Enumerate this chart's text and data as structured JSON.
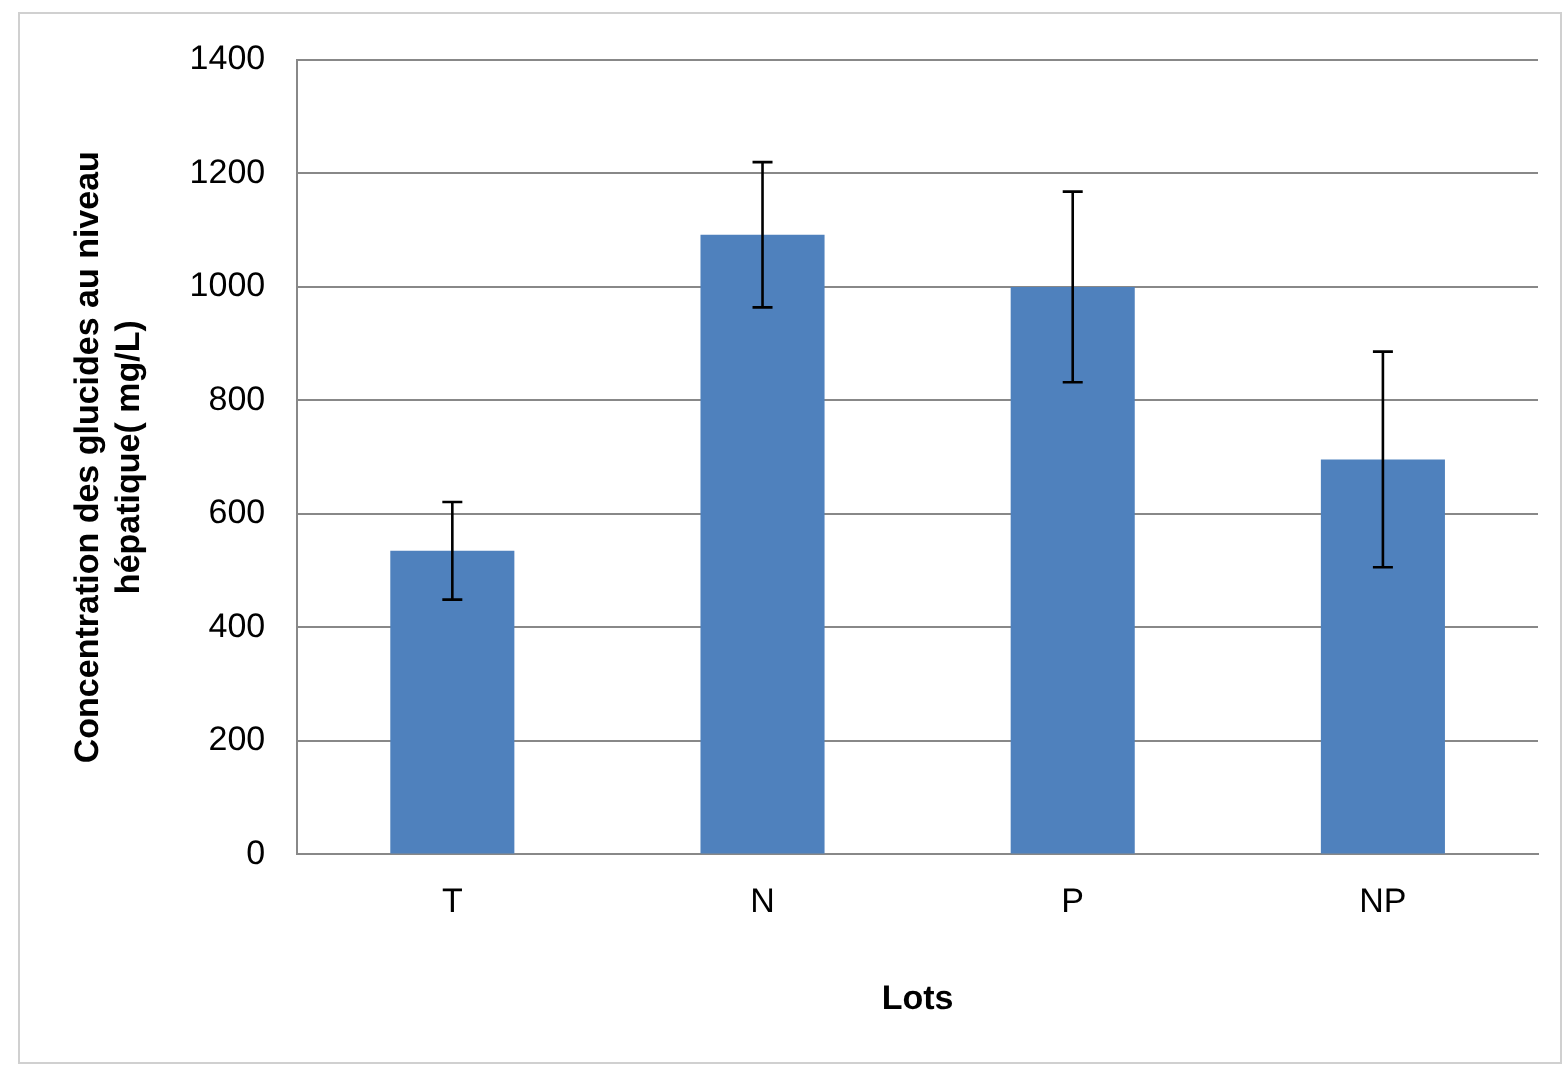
{
  "chart_data": {
    "type": "bar",
    "xlabel": "Lots",
    "ylabel": "Concentration des glucides au niveau hépatique( mg/L)",
    "categories": [
      "T",
      "N",
      "P",
      "NP"
    ],
    "values": [
      535,
      1092,
      1000,
      696
    ],
    "errors": [
      86,
      128,
      168,
      190
    ],
    "color": "#4f81bd",
    "ylim": [
      0,
      1400
    ],
    "yticks": [
      0,
      200,
      400,
      600,
      800,
      1000,
      1200,
      1400
    ],
    "grid": "y",
    "legend": false
  }
}
